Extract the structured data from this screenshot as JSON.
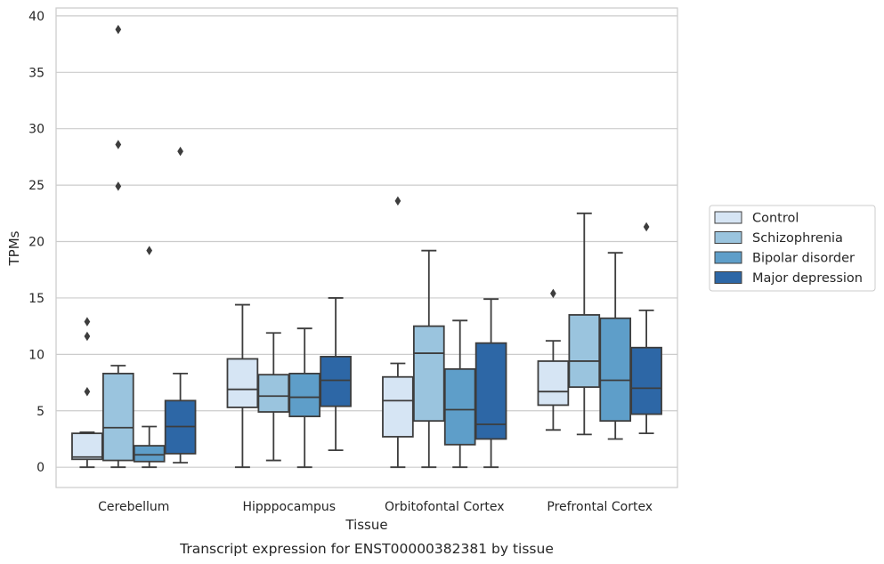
{
  "caption": "Transcript expression for ENST00000382381 by tissue",
  "chart_data": {
    "type": "boxplot",
    "xlabel": "Tissue",
    "ylabel": "TPMs",
    "ylim": [
      -1.8,
      40.7
    ],
    "yticks": [
      0,
      5,
      10,
      15,
      20,
      25,
      30,
      35,
      40
    ],
    "grid": "horizontal",
    "legend_position": "right",
    "categories": [
      "Cerebellum",
      "Hipppocampus",
      "Orbitofontal Cortex",
      "Prefrontal Cortex"
    ],
    "series": [
      {
        "name": "Control",
        "color": "#d6e5f4",
        "boxes": [
          {
            "whisker_low": 0.0,
            "q1": 0.7,
            "median": 0.9,
            "q3": 3.0,
            "whisker_high": 3.1,
            "outliers": [
              6.7,
              11.6,
              12.9
            ]
          },
          {
            "whisker_low": 0.0,
            "q1": 5.3,
            "median": 6.9,
            "q3": 9.6,
            "whisker_high": 14.4,
            "outliers": []
          },
          {
            "whisker_low": 0.0,
            "q1": 2.7,
            "median": 5.9,
            "q3": 8.0,
            "whisker_high": 9.2,
            "outliers": [
              23.6
            ]
          },
          {
            "whisker_low": 3.3,
            "q1": 5.5,
            "median": 6.7,
            "q3": 9.4,
            "whisker_high": 11.2,
            "outliers": [
              15.4
            ]
          }
        ]
      },
      {
        "name": "Schizophrenia",
        "color": "#9ac4de",
        "boxes": [
          {
            "whisker_low": 0.0,
            "q1": 0.6,
            "median": 3.5,
            "q3": 8.3,
            "whisker_high": 9.0,
            "outliers": [
              24.9,
              28.6,
              38.8
            ]
          },
          {
            "whisker_low": 0.6,
            "q1": 4.9,
            "median": 6.3,
            "q3": 8.2,
            "whisker_high": 11.9,
            "outliers": []
          },
          {
            "whisker_low": 0.0,
            "q1": 4.1,
            "median": 10.1,
            "q3": 12.5,
            "whisker_high": 19.2,
            "outliers": []
          },
          {
            "whisker_low": 2.9,
            "q1": 7.1,
            "median": 9.4,
            "q3": 13.5,
            "whisker_high": 22.5,
            "outliers": []
          }
        ]
      },
      {
        "name": "Bipolar disorder",
        "color": "#5e9ec9",
        "boxes": [
          {
            "whisker_low": 0.0,
            "q1": 0.5,
            "median": 1.1,
            "q3": 1.9,
            "whisker_high": 3.6,
            "outliers": [
              19.2
            ]
          },
          {
            "whisker_low": 0.0,
            "q1": 4.5,
            "median": 6.2,
            "q3": 8.3,
            "whisker_high": 12.3,
            "outliers": []
          },
          {
            "whisker_low": 0.0,
            "q1": 2.0,
            "median": 5.1,
            "q3": 8.7,
            "whisker_high": 13.0,
            "outliers": []
          },
          {
            "whisker_low": 2.5,
            "q1": 4.1,
            "median": 7.7,
            "q3": 13.2,
            "whisker_high": 19.0,
            "outliers": []
          }
        ]
      },
      {
        "name": "Major depression",
        "color": "#2d67a6",
        "boxes": [
          {
            "whisker_low": 0.4,
            "q1": 1.2,
            "median": 3.6,
            "q3": 5.9,
            "whisker_high": 8.3,
            "outliers": [
              28.0
            ]
          },
          {
            "whisker_low": 1.5,
            "q1": 5.4,
            "median": 7.7,
            "q3": 9.8,
            "whisker_high": 15.0,
            "outliers": []
          },
          {
            "whisker_low": 0.0,
            "q1": 2.5,
            "median": 3.8,
            "q3": 11.0,
            "whisker_high": 14.9,
            "outliers": []
          },
          {
            "whisker_low": 3.0,
            "q1": 4.7,
            "median": 7.0,
            "q3": 10.6,
            "whisker_high": 13.9,
            "outliers": [
              21.3
            ]
          }
        ]
      }
    ]
  }
}
